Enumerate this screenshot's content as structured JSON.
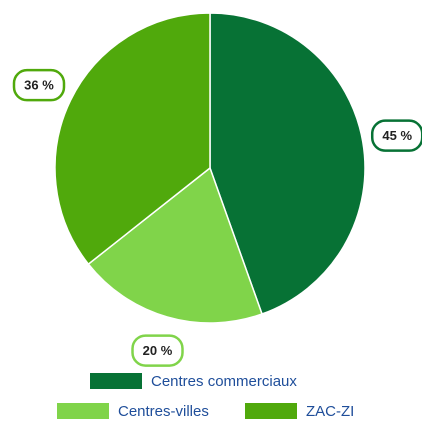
{
  "chart_data": {
    "type": "pie",
    "categories": [
      "Centres commerciaux",
      "Centres-villes",
      "ZAC-ZI"
    ],
    "values": [
      45,
      20,
      36
    ],
    "value_labels": [
      "45 %",
      "20 %",
      "36 %"
    ],
    "colors": [
      "#077235",
      "#80d44a",
      "#50a90c"
    ]
  }
}
